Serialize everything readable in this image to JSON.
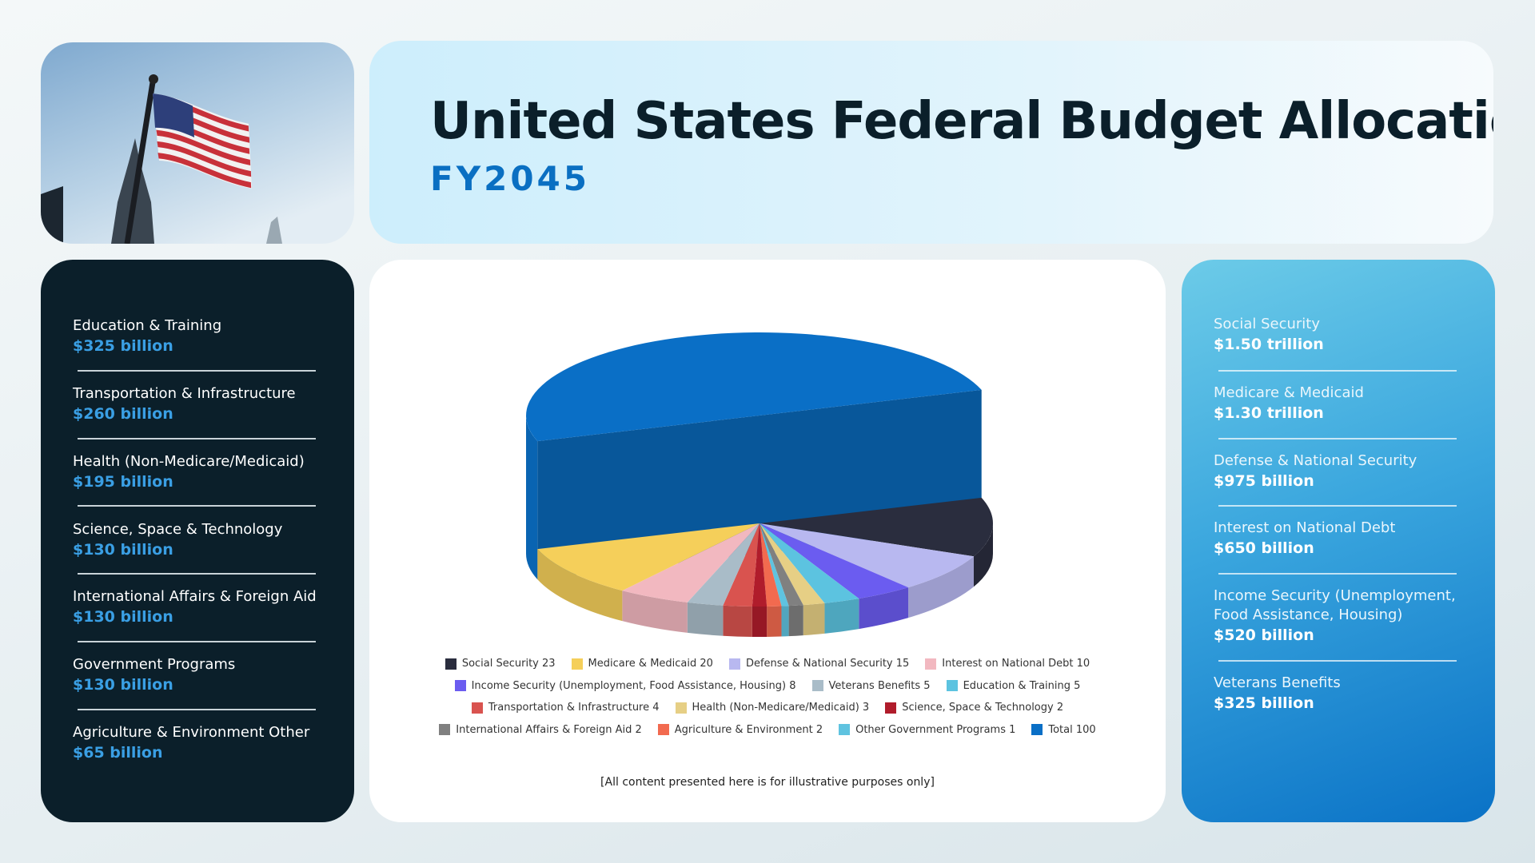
{
  "header": {
    "title": "United States Federal Budget Allocation",
    "subtitle": "FY2045"
  },
  "left_panel": {
    "items": [
      {
        "label": "Education & Training",
        "value": "$325 billion"
      },
      {
        "label": "Transportation & Infrastructure",
        "value": "$260 billion"
      },
      {
        "label": "Health (Non-Medicare/Medicaid)",
        "value": "$195 billion"
      },
      {
        "label": "Science, Space & Technology",
        "value": "$130 billion"
      },
      {
        "label": "International Affairs & Foreign Aid",
        "value": "$130 billion"
      },
      {
        "label": "Government Programs",
        "value": "$130 billion"
      },
      {
        "label": "Agriculture & Environment Other",
        "value": "$65 billion"
      }
    ]
  },
  "right_panel": {
    "items": [
      {
        "label": "Social Security",
        "value": "$1.50 trillion"
      },
      {
        "label": "Medicare & Medicaid",
        "value": "$1.30 trillion"
      },
      {
        "label": "Defense & National Security",
        "value": "$975 billion"
      },
      {
        "label": "Interest on National Debt",
        "value": "$650 billion"
      },
      {
        "label": "Income Security (Unemployment, Food Assistance, Housing)",
        "value": "$520 billion"
      },
      {
        "label": "Veterans Benefits",
        "value": "$325 billion"
      }
    ]
  },
  "chart_data": {
    "type": "pie",
    "style": "3d",
    "legend_position": "bottom",
    "series": [
      {
        "name": "Social Security",
        "value": 23,
        "color": "#2a2d3e"
      },
      {
        "name": "Medicare & Medicaid",
        "value": 20,
        "color": "#f5cf5a"
      },
      {
        "name": "Defense & National Security",
        "value": 15,
        "color": "#b8b8f0"
      },
      {
        "name": "Interest on National Debt",
        "value": 10,
        "color": "#f2b8c0"
      },
      {
        "name": "Income Security (Unemployment, Food Assistance, Housing)",
        "value": 8,
        "color": "#6b5cf0"
      },
      {
        "name": "Veterans Benefits",
        "value": 5,
        "color": "#a9bcc8"
      },
      {
        "name": "Education & Training",
        "value": 5,
        "color": "#5cc3e0"
      },
      {
        "name": "Transportation & Infrastructure",
        "value": 4,
        "color": "#d9534f"
      },
      {
        "name": "Health (Non-Medicare/Medicaid)",
        "value": 3,
        "color": "#e6cf85"
      },
      {
        "name": "Science, Space & Technology",
        "value": 2,
        "color": "#b01c2b"
      },
      {
        "name": "International Affairs & Foreign Aid",
        "value": 2,
        "color": "#808080"
      },
      {
        "name": "Agriculture & Environment",
        "value": 2,
        "color": "#f26a4f"
      },
      {
        "name": "Other Government Programs",
        "value": 1,
        "color": "#5fc3e0"
      },
      {
        "name": "Total",
        "value": 100,
        "color": "#0a6fc6"
      }
    ],
    "legend_rows": [
      [
        0,
        1,
        2,
        3
      ],
      [
        4,
        5,
        6
      ],
      [
        7,
        8,
        9
      ],
      [
        10,
        11,
        12,
        13
      ]
    ]
  },
  "footnote": "[All content presented here is for illustrative purposes only]"
}
